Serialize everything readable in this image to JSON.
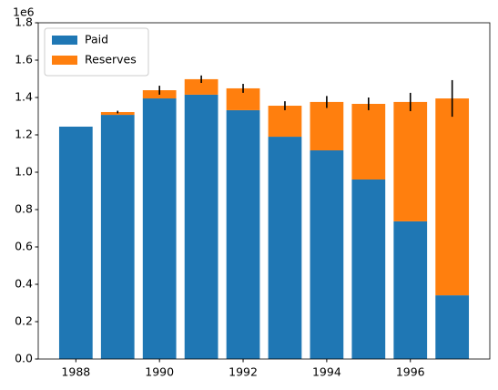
{
  "chart_data": {
    "type": "bar",
    "stacked": true,
    "x": [
      1988,
      1989,
      1990,
      1991,
      1992,
      1993,
      1994,
      1995,
      1996,
      1997
    ],
    "series": [
      {
        "name": "Paid",
        "color": "#1f77b4",
        "values": [
          1244000,
          1307000,
          1395000,
          1415000,
          1332000,
          1190000,
          1117000,
          961000,
          737000,
          341000
        ]
      },
      {
        "name": "Reserves",
        "color": "#ff7f0e",
        "values": [
          0,
          15000,
          44000,
          83000,
          117000,
          166000,
          259000,
          405000,
          639000,
          1054000
        ],
        "errors": [
          0,
          7000,
          24000,
          20000,
          24000,
          24000,
          32000,
          34000,
          49000,
          98000
        ]
      }
    ],
    "xlim": [
      1987.1,
      1997.9
    ],
    "xticks": [
      1988,
      1990,
      1992,
      1994,
      1996
    ],
    "ylim": [
      0,
      1800000
    ],
    "yticks": [
      {
        "value": 0,
        "label": "0.0"
      },
      {
        "value": 200000,
        "label": "0.2"
      },
      {
        "value": 400000,
        "label": "0.4"
      },
      {
        "value": 600000,
        "label": "0.6"
      },
      {
        "value": 800000,
        "label": "0.8"
      },
      {
        "value": 1000000,
        "label": "1.0"
      },
      {
        "value": 1200000,
        "label": "1.2"
      },
      {
        "value": 1400000,
        "label": "1.4"
      },
      {
        "value": 1600000,
        "label": "1.6"
      },
      {
        "value": 1800000,
        "label": "1.8"
      }
    ],
    "y_offset_label": "1e6",
    "bar_width": 0.8,
    "legend": "upper left"
  }
}
